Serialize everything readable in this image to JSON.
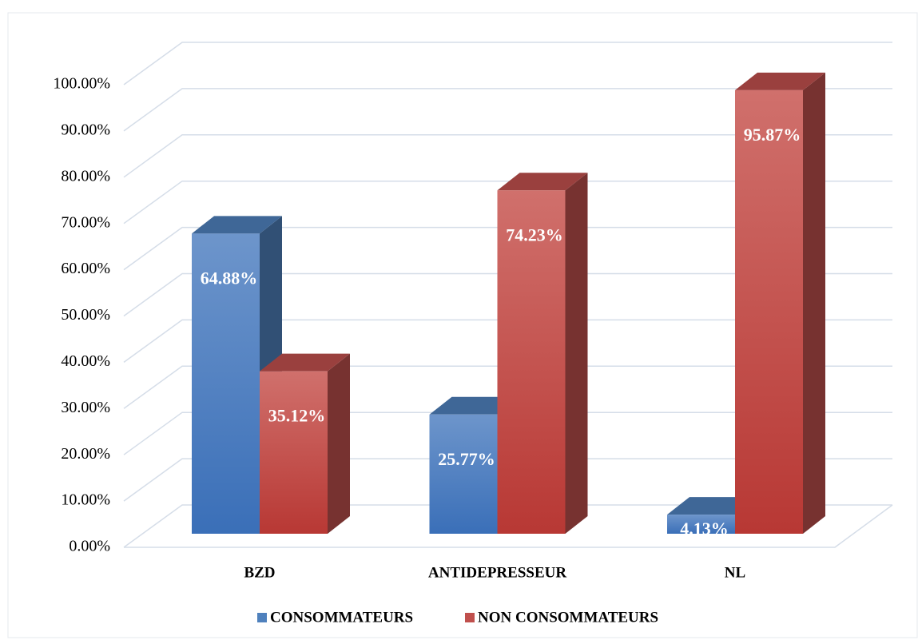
{
  "chart_data": {
    "type": "bar3d",
    "categories": [
      "BZD",
      "ANTIDEPRESSEUR",
      "NL"
    ],
    "series": [
      {
        "name": "CONSOMMATEURS",
        "color": "#4f81bd",
        "values": [
          64.88,
          25.77,
          4.13
        ],
        "value_labels": [
          "64.88%",
          "25.77%",
          "4.13%"
        ]
      },
      {
        "name": "NON CONSOMMATEURS",
        "color": "#c0504d",
        "values": [
          35.12,
          74.23,
          95.87
        ],
        "value_labels": [
          "35.12%",
          "74.23%",
          "95.87%"
        ]
      }
    ],
    "ylim": [
      0,
      100
    ],
    "yticks": [
      {
        "value": 0,
        "label": "0.00%"
      },
      {
        "value": 10,
        "label": "10.00%"
      },
      {
        "value": 20,
        "label": "20.00%"
      },
      {
        "value": 30,
        "label": "30.00%"
      },
      {
        "value": 40,
        "label": "40.00%"
      },
      {
        "value": 50,
        "label": "50.00%"
      },
      {
        "value": 60,
        "label": "60.00%"
      },
      {
        "value": 70,
        "label": "70.00%"
      },
      {
        "value": 80,
        "label": "80.00%"
      },
      {
        "value": 90,
        "label": "90.00%"
      },
      {
        "value": 100,
        "label": "100.00%"
      }
    ],
    "grid": true,
    "legend": "bottom"
  }
}
